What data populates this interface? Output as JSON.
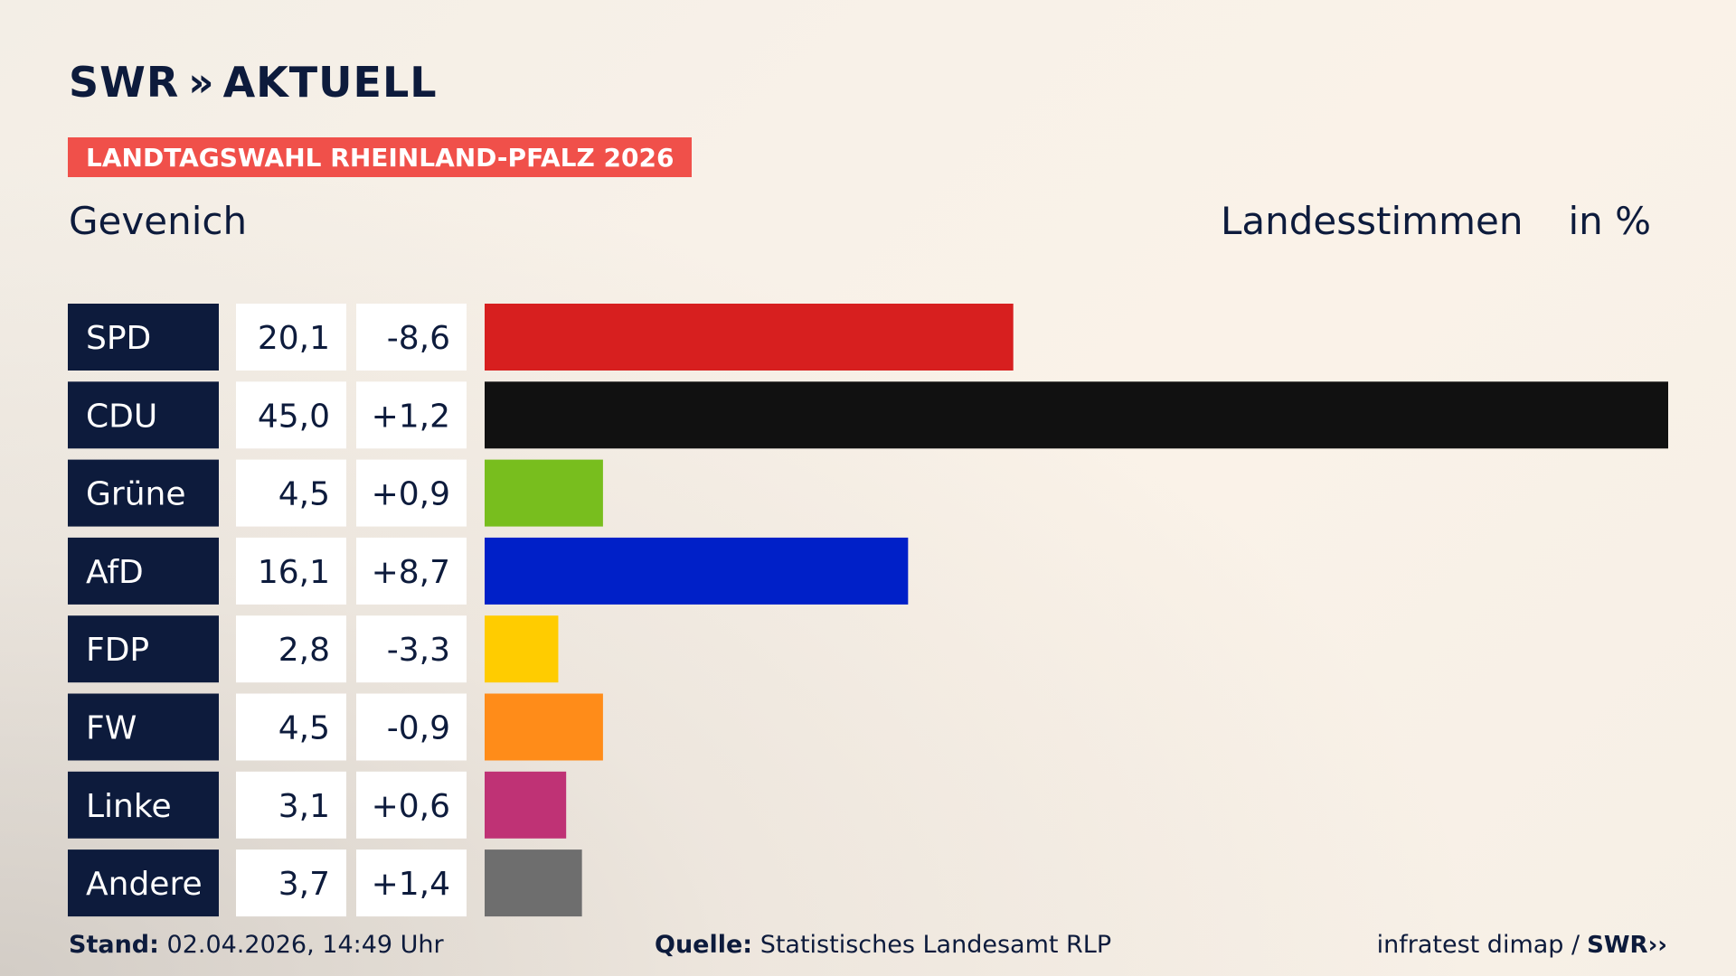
{
  "header": {
    "brand": "SWR",
    "brand_suffix": "AKTUELL",
    "ribbon": "LANDTAGSWAHL RHEINLAND-PFALZ 2026",
    "place": "Gevenich",
    "measure_label": "Landesstimmen",
    "unit_label": "in %"
  },
  "colors": {
    "navy": "#0d1b3c",
    "ribbon": "#f0504a"
  },
  "chart_data": {
    "type": "bar",
    "orientation": "horizontal",
    "categories": [
      "SPD",
      "CDU",
      "Grüne",
      "AfD",
      "FDP",
      "FW",
      "Linke",
      "Andere"
    ],
    "values": [
      20.1,
      45.0,
      4.5,
      16.1,
      2.8,
      4.5,
      3.1,
      3.7
    ],
    "value_labels": [
      "20,1",
      "45,0",
      "4,5",
      "16,1",
      "2,8",
      "4,5",
      "3,1",
      "3,7"
    ],
    "change_labels": [
      "-8,6",
      "+1,2",
      "+0,9",
      "+8,7",
      "-3,3",
      "-0,9",
      "+0,6",
      "+1,4"
    ],
    "changes": [
      -8.6,
      1.2,
      0.9,
      8.7,
      -3.3,
      -0.9,
      0.6,
      1.4
    ],
    "bar_colors": [
      "#d71f1f",
      "#111111",
      "#78be1e",
      "#0020c8",
      "#ffcc00",
      "#ff8c19",
      "#bf3275",
      "#6e6e6e"
    ],
    "xlim": [
      0,
      45.0
    ],
    "grid": false,
    "legend": "none"
  },
  "footer": {
    "stand_label": "Stand:",
    "stand_value": "02.04.2026, 14:49 Uhr",
    "source_label": "Quelle:",
    "source_value": "Statistisches Landesamt RLP",
    "credit": "infratest dimap /",
    "credit_brand": "SWR"
  }
}
